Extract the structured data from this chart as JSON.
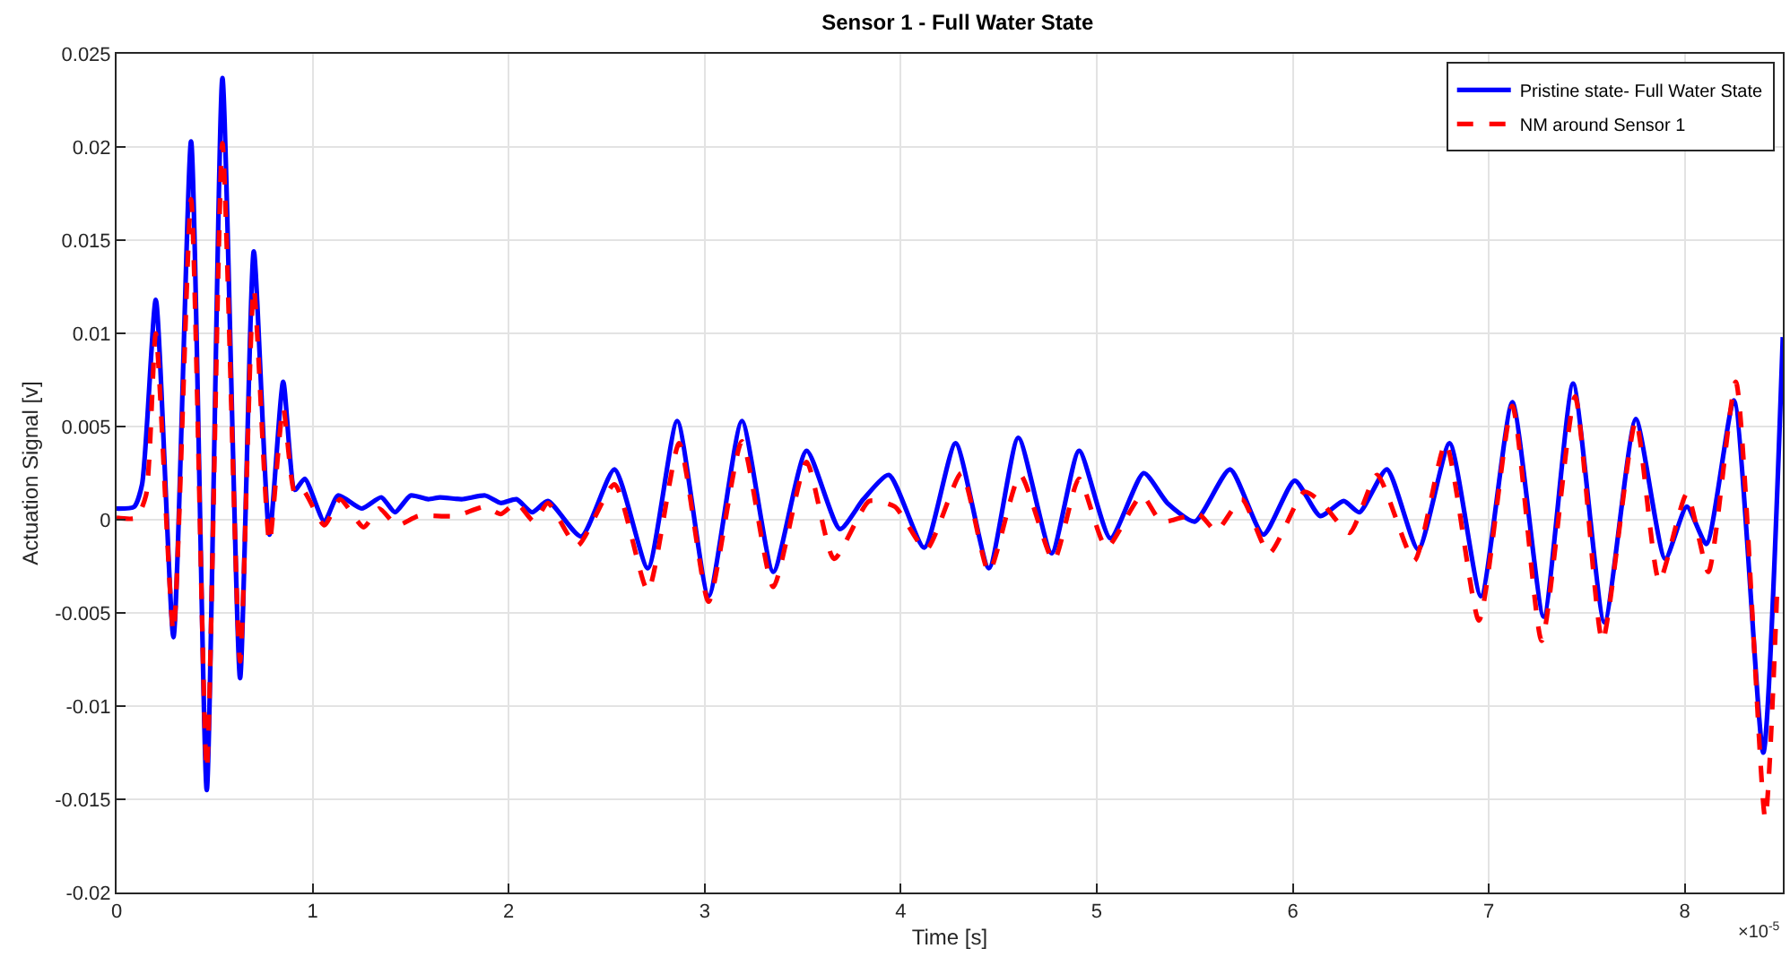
{
  "chart_data": {
    "type": "line",
    "title": "Sensor 1 - Full Water State",
    "xlabel": "Time [s]",
    "ylabel": "Actuation Signal [v]",
    "annotations": [
      "×10$^{-5}$"
    ],
    "xlim": [
      0,
      8.5
    ],
    "xticks": [
      0,
      1,
      2,
      3,
      4,
      5,
      6,
      7,
      8
    ],
    "ylim": [
      -0.02,
      0.025
    ],
    "yticks": [
      -0.02,
      -0.015,
      -0.01,
      -0.005,
      0,
      0.005,
      0.01,
      0.015,
      0.02,
      0.025
    ],
    "grid": true,
    "legend": "top right",
    "marker": "none",
    "series": [
      {
        "name": "Pristine state- Full Water State",
        "color": "#0000ff",
        "line_style": "solid",
        "x": [
          0,
          0.09,
          0.13,
          0.2,
          0.29,
          0.38,
          0.46,
          0.54,
          0.63,
          0.7,
          0.78,
          0.85,
          0.91,
          0.96,
          1.06,
          1.13,
          1.25,
          1.35,
          1.42,
          1.5,
          1.59,
          1.65,
          1.76,
          1.88,
          1.96,
          2.04,
          2.12,
          2.2,
          2.37,
          2.54,
          2.71,
          2.86,
          3.02,
          3.19,
          3.35,
          3.52,
          3.69,
          3.81,
          3.94,
          4.12,
          4.28,
          4.45,
          4.6,
          4.77,
          4.91,
          5.07,
          5.24,
          5.36,
          5.5,
          5.68,
          5.85,
          6.01,
          6.14,
          6.26,
          6.34,
          6.48,
          6.64,
          6.8,
          6.96,
          7.12,
          7.28,
          7.43,
          7.59,
          7.75,
          7.9,
          8.01,
          8.11,
          8.25,
          8.4,
          8.5
        ],
        "values": [
          0.0006,
          0.0007,
          0.0019,
          0.0118,
          -0.0063,
          0.0203,
          -0.0145,
          0.0237,
          -0.0085,
          0.0144,
          -0.0008,
          0.0074,
          0.0016,
          0.0022,
          -0.0001,
          0.0013,
          0.0006,
          0.0012,
          0.0004,
          0.0013,
          0.0011,
          0.0012,
          0.0011,
          0.0013,
          0.0009,
          0.0011,
          0.0004,
          0.001,
          -0.0009,
          0.0027,
          -0.0026,
          0.0053,
          -0.0041,
          0.0053,
          -0.0028,
          0.0037,
          -0.0005,
          0.0011,
          0.0024,
          -0.0015,
          0.0041,
          -0.0026,
          0.0044,
          -0.0018,
          0.0037,
          -0.001,
          0.0025,
          0.0009,
          -0.0001,
          0.0027,
          -0.0008,
          0.0021,
          0.0002,
          0.001,
          0.0004,
          0.0027,
          -0.0016,
          0.0041,
          -0.0041,
          0.0063,
          -0.0052,
          0.0073,
          -0.0055,
          0.0054,
          -0.0021,
          0.0007,
          -0.0013,
          0.0064,
          -0.0125,
          0.0098
        ]
      },
      {
        "name": "NM around Sensor 1",
        "color": "#ff0000",
        "line_style": "dashed",
        "x": [
          0,
          0.1,
          0.15,
          0.2,
          0.29,
          0.38,
          0.46,
          0.54,
          0.63,
          0.7,
          0.78,
          0.85,
          0.91,
          0.95,
          1.06,
          1.14,
          1.26,
          1.34,
          1.43,
          1.54,
          1.73,
          1.88,
          1.96,
          2.04,
          2.13,
          2.2,
          2.35,
          2.54,
          2.71,
          2.87,
          3.02,
          3.19,
          3.35,
          3.52,
          3.66,
          3.84,
          3.97,
          4.13,
          4.31,
          4.45,
          4.61,
          4.78,
          4.91,
          5.05,
          5.23,
          5.33,
          5.52,
          5.61,
          5.74,
          5.88,
          6.06,
          6.15,
          6.29,
          6.43,
          6.62,
          6.78,
          6.95,
          7.12,
          7.27,
          7.44,
          7.58,
          7.75,
          7.87,
          8.01,
          8.12,
          8.26,
          8.41,
          8.47
        ],
        "values": [
          0.0001,
          0.0001,
          0.0013,
          0.01,
          -0.006,
          0.0172,
          -0.0134,
          0.0202,
          -0.0076,
          0.0124,
          -0.0012,
          0.006,
          0.0014,
          0.0016,
          -0.0003,
          0.0011,
          -0.0004,
          0.0006,
          -0.0003,
          0.0002,
          0.0002,
          0.0007,
          0.0003,
          0.0009,
          -0.0001,
          0.0009,
          -0.0014,
          0.0019,
          -0.0038,
          0.0041,
          -0.0044,
          0.0042,
          -0.0036,
          0.0031,
          -0.0021,
          0.001,
          0.0007,
          -0.0016,
          0.0025,
          -0.0028,
          0.0024,
          -0.0022,
          0.0022,
          -0.0015,
          0.0013,
          -0.0001,
          0.0003,
          -0.0006,
          0.0011,
          -0.0018,
          0.0015,
          0.0009,
          -0.0007,
          0.0024,
          -0.0022,
          0.0041,
          -0.0054,
          0.0061,
          -0.0065,
          0.0066,
          -0.0065,
          0.0053,
          -0.0033,
          0.0014,
          -0.0028,
          0.0074,
          -0.016,
          -0.004
        ]
      }
    ]
  }
}
